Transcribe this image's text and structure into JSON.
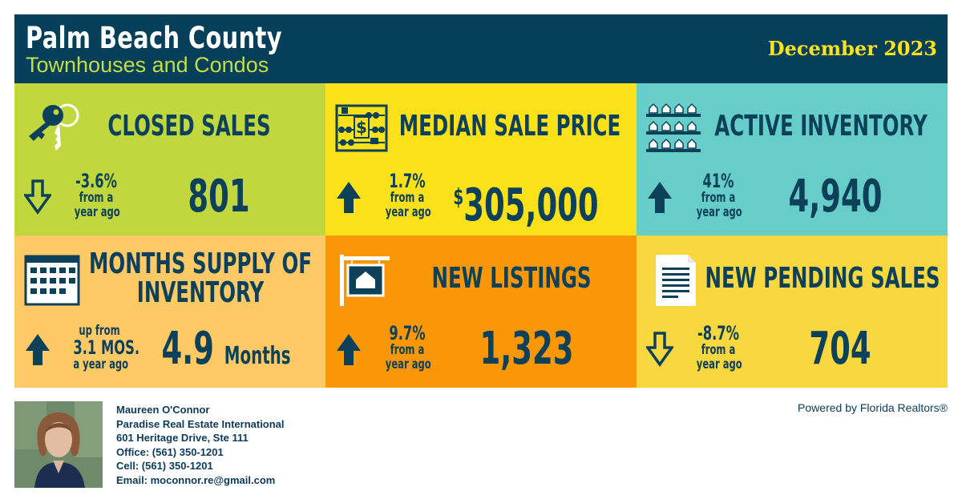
{
  "header": {
    "title": "Palm Beach County",
    "subtitle": "Townhouses and Condos",
    "date": "December 2023"
  },
  "colors": {
    "header_bg": "#063f59",
    "closed_sales": "#c1d73e",
    "median_price": "#fbe119",
    "active_inventory": "#67cdc9",
    "months_supply": "#ffc966",
    "new_listings": "#f99708",
    "new_pending": "#f9d73f",
    "text_dark": "#0d4159"
  },
  "tiles": {
    "closed_sales": {
      "icon": "keys-icon",
      "title": "CLOSED SALES",
      "direction": "down",
      "change": "-3.6%",
      "change_line2": "from a",
      "change_line3": "year ago",
      "value": "801"
    },
    "median_price": {
      "icon": "abacus-icon",
      "title": "MEDIAN SALE PRICE",
      "direction": "up",
      "change": "1.7%",
      "change_line2": "from a",
      "change_line3": "year ago",
      "value_symbol": "$",
      "value": "305,000"
    },
    "active_inventory": {
      "icon": "houses-shelf-icon",
      "title": "ACTIVE INVENTORY",
      "direction": "up",
      "change": "41%",
      "change_line2": "from a",
      "change_line3": "year ago",
      "value": "4,940"
    },
    "months_supply": {
      "icon": "calendar-icon",
      "title_line1": "MONTHS SUPPLY OF",
      "title_line2": "INVENTORY",
      "direction": "up",
      "change_line1": "up from",
      "change": "3.1 MOS.",
      "change_line3": "a year ago",
      "value": "4.9",
      "value_unit": "Months"
    },
    "new_listings": {
      "icon": "house-sign-icon",
      "title": "NEW LISTINGS",
      "direction": "up",
      "change": "9.7%",
      "change_line2": "from a",
      "change_line3": "year ago",
      "value": "1,323"
    },
    "new_pending": {
      "icon": "document-icon",
      "title": "NEW PENDING SALES",
      "direction": "down",
      "change": "-8.7%",
      "change_line2": "from a",
      "change_line3": "year ago",
      "value": "704"
    }
  },
  "agent": {
    "name": "Maureen O'Connor",
    "company": "Paradise Real Estate International",
    "address": "601 Heritage Drive, Ste 111",
    "office": "Office: (561) 350-1201",
    "cell": "Cell: (561) 350-1201",
    "email": "Email: moconnor.re@gmail.com"
  },
  "powered_by": "Powered by Florida Realtors®"
}
